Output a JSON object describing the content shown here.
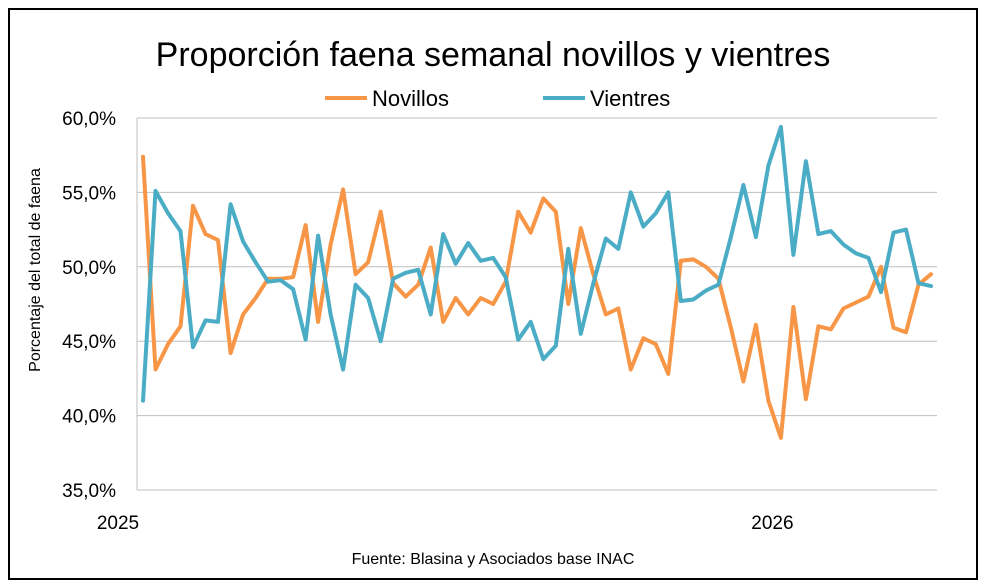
{
  "chart_data": {
    "type": "line",
    "title": "Proporción faena semanal novillos y vientres",
    "ylabel": "Porcentaje del total de faena",
    "xlabel": "",
    "source": "Fuente: Blasina y Asociados base INAC",
    "ylim": [
      35,
      60
    ],
    "yticks": [
      "35,0%",
      "40,0%",
      "45,0%",
      "50,0%",
      "55,0%",
      "60,0%"
    ],
    "ytick_values": [
      35,
      40,
      45,
      50,
      55,
      60
    ],
    "grid": true,
    "legend_position": "top",
    "x_labels": [
      {
        "index": 0,
        "label": "2025"
      },
      {
        "index": 50,
        "label": "2026"
      }
    ],
    "series": [
      {
        "name": "Novillos",
        "color": "#F79646",
        "values": [
          57.4,
          43.1,
          44.8,
          46.0,
          54.1,
          52.2,
          51.8,
          44.2,
          46.8,
          47.9,
          49.2,
          49.2,
          49.3,
          52.8,
          46.3,
          51.5,
          55.2,
          49.5,
          50.3,
          53.7,
          48.9,
          48.0,
          48.8,
          51.3,
          46.3,
          47.9,
          46.8,
          47.9,
          47.5,
          49.0,
          53.7,
          52.3,
          54.6,
          53.7,
          47.5,
          52.6,
          49.5,
          46.8,
          47.2,
          43.1,
          45.2,
          44.8,
          42.8,
          50.4,
          50.5,
          50.0,
          49.2,
          45.9,
          42.3,
          46.1,
          41.0,
          38.5,
          47.3,
          41.1,
          46.0,
          45.8,
          47.2,
          47.6,
          48.0,
          50.0,
          45.9,
          45.6,
          48.8,
          49.5
        ]
      },
      {
        "name": "Vientres",
        "color": "#4BACC6",
        "values": [
          41.0,
          55.1,
          53.6,
          52.4,
          44.6,
          46.4,
          46.3,
          54.2,
          51.7,
          50.3,
          49.0,
          49.1,
          48.5,
          45.1,
          52.1,
          46.8,
          43.1,
          48.8,
          47.9,
          45.0,
          49.2,
          49.6,
          49.8,
          46.8,
          52.2,
          50.2,
          51.6,
          50.4,
          50.6,
          49.3,
          45.1,
          46.3,
          43.8,
          44.7,
          51.2,
          45.5,
          48.9,
          51.9,
          51.2,
          55.0,
          52.7,
          53.6,
          55.0,
          47.7,
          47.8,
          48.4,
          48.8,
          52.0,
          55.5,
          52.0,
          56.8,
          59.4,
          50.8,
          57.1,
          52.2,
          52.4,
          51.5,
          50.9,
          50.6,
          48.3,
          52.3,
          52.5,
          48.9,
          48.7
        ]
      }
    ]
  }
}
